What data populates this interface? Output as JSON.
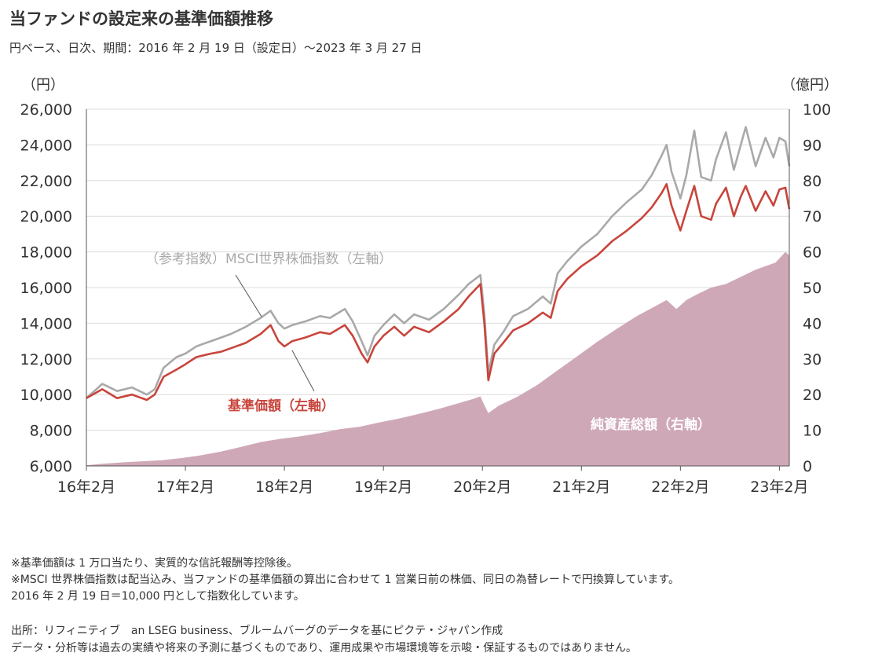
{
  "title": "当ファンドの設定来の基準価額推移",
  "subtitle": "円ベース、日次、期間：2016 年 2 月 19 日（設定日）～2023 年 3 月 27 日",
  "notes": [
    "※基準価額は 1 万口当たり、実質的な信託報酬等控除後。",
    "※MSCI 世界株価指数は配当込み、当ファンドの基準価額の算出に合わせて 1 営業日前の株価、同日の為替レートで円換算しています。",
    "2016 年 2 月 19 日＝10,000 円として指数化しています。"
  ],
  "source": [
    "出所：リフィニティブ　an LSEG business、ブルームバーグのデータを基にピクテ・ジャパン作成",
    "データ・分析等は過去の実績や将来の予測に基づくものであり、運用成果や市場環境等を示唆・保証するものではありません。"
  ],
  "chart_data": {
    "type": "line",
    "left_axis": {
      "unit_label": "（円）",
      "ylim": [
        6000,
        26000
      ],
      "ticks": [
        "6,000",
        "8,000",
        "10,000",
        "12,000",
        "14,000",
        "16,000",
        "18,000",
        "20,000",
        "22,000",
        "24,000",
        "26,000"
      ]
    },
    "right_axis": {
      "unit_label": "（億円）",
      "ylim": [
        0,
        100
      ],
      "ticks": [
        "0",
        "10",
        "20",
        "30",
        "40",
        "50",
        "60",
        "70",
        "80",
        "90",
        "100"
      ]
    },
    "x_tick_labels": [
      "16年2月",
      "17年2月",
      "18年2月",
      "19年2月",
      "20年2月",
      "21年2月",
      "22年2月",
      "23年2月"
    ],
    "xlim": [
      2016.14,
      2023.24
    ],
    "grid": true,
    "colors": {
      "index": "#a9a9a9",
      "nav": "#c8453c",
      "aum": "#cfa8b8",
      "grid": "#dcdcdc",
      "axis": "#555555"
    },
    "series": [
      {
        "name": "（参考指数）MSCI世界株価指数（左軸）",
        "axis": "left",
        "style": "line",
        "color": "#a9a9a9",
        "x": [
          2016.14,
          2016.3,
          2016.45,
          2016.6,
          2016.75,
          2016.83,
          2016.92,
          2017.05,
          2017.14,
          2017.25,
          2017.4,
          2017.5,
          2017.6,
          2017.75,
          2017.9,
          2018.0,
          2018.08,
          2018.14,
          2018.22,
          2018.35,
          2018.5,
          2018.6,
          2018.75,
          2018.83,
          2018.92,
          2018.98,
          2019.05,
          2019.14,
          2019.25,
          2019.35,
          2019.45,
          2019.6,
          2019.75,
          2019.9,
          2020.0,
          2020.12,
          2020.16,
          2020.2,
          2020.26,
          2020.35,
          2020.45,
          2020.6,
          2020.75,
          2020.83,
          2020.9,
          2021.0,
          2021.14,
          2021.3,
          2021.45,
          2021.6,
          2021.75,
          2021.85,
          2021.95,
          2022.0,
          2022.05,
          2022.14,
          2022.2,
          2022.28,
          2022.35,
          2022.45,
          2022.5,
          2022.6,
          2022.68,
          2022.75,
          2022.8,
          2022.9,
          2023.0,
          2023.08,
          2023.14,
          2023.2,
          2023.24
        ],
        "y": [
          9800,
          10600,
          10200,
          10400,
          10000,
          10300,
          11500,
          12100,
          12300,
          12700,
          13000,
          13200,
          13400,
          13800,
          14300,
          14700,
          14000,
          13700,
          13900,
          14100,
          14400,
          14300,
          14800,
          14100,
          13000,
          12200,
          13300,
          13900,
          14500,
          14000,
          14500,
          14200,
          14800,
          15600,
          16200,
          16700,
          14500,
          11200,
          12800,
          13500,
          14400,
          14800,
          15500,
          15100,
          16800,
          17500,
          18300,
          19000,
          20000,
          20800,
          21500,
          22300,
          23400,
          24000,
          22500,
          21000,
          22300,
          24800,
          22200,
          22000,
          23200,
          24700,
          22600,
          24000,
          25000,
          22800,
          24400,
          23300,
          24400,
          24200,
          22800
        ]
      },
      {
        "name": "基準価額（左軸）",
        "axis": "left",
        "style": "line",
        "color": "#c8453c",
        "x": [
          2016.14,
          2016.3,
          2016.45,
          2016.6,
          2016.75,
          2016.83,
          2016.92,
          2017.05,
          2017.14,
          2017.25,
          2017.4,
          2017.5,
          2017.6,
          2017.75,
          2017.9,
          2018.0,
          2018.08,
          2018.14,
          2018.22,
          2018.35,
          2018.5,
          2018.6,
          2018.75,
          2018.83,
          2018.92,
          2018.98,
          2019.05,
          2019.14,
          2019.25,
          2019.35,
          2019.45,
          2019.6,
          2019.75,
          2019.9,
          2020.0,
          2020.12,
          2020.16,
          2020.2,
          2020.26,
          2020.35,
          2020.45,
          2020.6,
          2020.75,
          2020.83,
          2020.9,
          2021.0,
          2021.14,
          2021.3,
          2021.45,
          2021.6,
          2021.75,
          2021.85,
          2021.95,
          2022.0,
          2022.05,
          2022.14,
          2022.2,
          2022.28,
          2022.35,
          2022.45,
          2022.5,
          2022.6,
          2022.68,
          2022.75,
          2022.8,
          2022.9,
          2023.0,
          2023.08,
          2023.14,
          2023.2,
          2023.24
        ],
        "y": [
          9800,
          10300,
          9800,
          10000,
          9700,
          10000,
          11000,
          11400,
          11700,
          12100,
          12300,
          12400,
          12600,
          12900,
          13400,
          13900,
          13000,
          12700,
          13000,
          13200,
          13500,
          13400,
          13900,
          13300,
          12300,
          11800,
          12700,
          13300,
          13800,
          13300,
          13800,
          13500,
          14100,
          14800,
          15500,
          16200,
          14000,
          10800,
          12300,
          12900,
          13600,
          14000,
          14600,
          14300,
          15800,
          16500,
          17200,
          17800,
          18600,
          19200,
          19900,
          20500,
          21300,
          21800,
          20600,
          19200,
          20300,
          21700,
          20000,
          19800,
          20700,
          21600,
          20000,
          21100,
          21700,
          20300,
          21400,
          20600,
          21500,
          21600,
          20400
        ]
      },
      {
        "name": "純資産総額（右軸）",
        "axis": "right",
        "style": "area",
        "color": "#cfa8b8",
        "x": [
          2016.14,
          2016.3,
          2016.5,
          2016.7,
          2016.9,
          2017.1,
          2017.3,
          2017.5,
          2017.7,
          2017.9,
          2018.1,
          2018.3,
          2018.5,
          2018.7,
          2018.9,
          2019.1,
          2019.3,
          2019.5,
          2019.7,
          2019.9,
          2020.05,
          2020.12,
          2020.16,
          2020.2,
          2020.3,
          2020.5,
          2020.7,
          2020.9,
          2021.1,
          2021.3,
          2021.5,
          2021.7,
          2021.9,
          2022.0,
          2022.1,
          2022.2,
          2022.3,
          2022.45,
          2022.6,
          2022.75,
          2022.9,
          2023.0,
          2023.1,
          2023.2,
          2023.24
        ],
        "y": [
          0.2,
          0.6,
          1.0,
          1.3,
          1.6,
          2.2,
          3.0,
          4.0,
          5.3,
          6.7,
          7.6,
          8.3,
          9.2,
          10.3,
          11.0,
          12.2,
          13.3,
          14.6,
          16.0,
          17.6,
          18.8,
          19.5,
          17.0,
          14.8,
          16.8,
          19.5,
          22.8,
          26.8,
          30.8,
          34.8,
          38.5,
          42.0,
          45.0,
          46.5,
          44.0,
          46.5,
          48.0,
          50.0,
          51.0,
          53.0,
          55.0,
          56.0,
          57.0,
          60.0,
          59.0
        ]
      }
    ],
    "annotations": [
      {
        "text": "（参考指数）MSCI世界株価指数（左軸）",
        "color": "#a9a9a9"
      },
      {
        "text": "基準価額（左軸）",
        "color": "#c8453c"
      },
      {
        "text": "純資産総額（右軸）",
        "color": "#ffffff"
      }
    ]
  }
}
